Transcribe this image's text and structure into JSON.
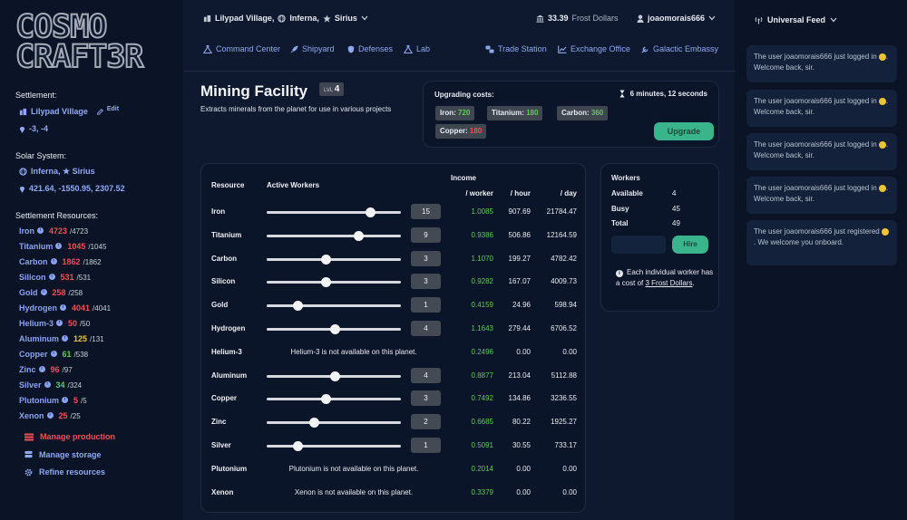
{
  "logo": {
    "line1": "COSMO",
    "line2": "CRAFT3R"
  },
  "sidebar": {
    "settlement_label": "Settlement:",
    "settlement_name": "Lilypad Village",
    "edit_label": "Edit",
    "settlement_coords": "-3, -4",
    "solar_label": "Solar System:",
    "system_name": "Inferna, ★ Sirius",
    "system_coords": "421.64, -1550.95, 2307.52",
    "resources_label": "Settlement Resources:",
    "resources": [
      {
        "name": "Iron",
        "current": "4723",
        "max": "/4723",
        "color": "red"
      },
      {
        "name": "Titanium",
        "current": "1045",
        "max": "/1045",
        "color": "red"
      },
      {
        "name": "Carbon",
        "current": "1862",
        "max": "/1862",
        "color": "red"
      },
      {
        "name": "Silicon",
        "current": "531",
        "max": "/531",
        "color": "red"
      },
      {
        "name": "Gold",
        "current": "258",
        "max": "/258",
        "color": "red"
      },
      {
        "name": "Hydrogen",
        "current": "4041",
        "max": "/4041",
        "color": "red"
      },
      {
        "name": "Helium-3",
        "current": "50",
        "max": "/50",
        "color": "red"
      },
      {
        "name": "Aluminum",
        "current": "125",
        "max": "/131",
        "color": "yellow"
      },
      {
        "name": "Copper",
        "current": "61",
        "max": "/538",
        "color": "green"
      },
      {
        "name": "Zinc",
        "current": "96",
        "max": "/97",
        "color": "red"
      },
      {
        "name": "Silver",
        "current": "34",
        "max": "/324",
        "color": "green"
      },
      {
        "name": "Plutonium",
        "current": "5",
        "max": "/5",
        "color": "red"
      },
      {
        "name": "Xenon",
        "current": "25",
        "max": "/25",
        "color": "red"
      }
    ],
    "actions": [
      {
        "label": "Manage production",
        "color": "#ef4f56",
        "icon": "list-icon"
      },
      {
        "label": "Manage storage",
        "color": "#8ea8f0",
        "icon": "storage-icon"
      },
      {
        "label": "Refine resources",
        "color": "#8ea8f0",
        "icon": "gear-icon"
      }
    ]
  },
  "topbar": {
    "settlement": "Lilypad Village,",
    "planet": "Inferna,",
    "star": "Sirius",
    "balance_amount": "33.39",
    "balance_unit": "Frost Dollars",
    "username": "joaomorais666"
  },
  "nav_left": [
    "Command Center",
    "Shipyard",
    "Defenses",
    "Lab"
  ],
  "nav_right": [
    "Trade Station",
    "Exchange Office",
    "Galactic Embassy"
  ],
  "facility": {
    "title": "Mining Facility",
    "level_label": "LVL",
    "level": "4",
    "description": "Extracts minerals from the planet for use in various projects"
  },
  "upgrade": {
    "label": "Upgrading costs:",
    "time": "6 minutes, 12 seconds",
    "costs": [
      {
        "name": "Iron:",
        "value": "720",
        "color": "green"
      },
      {
        "name": "Titanium:",
        "value": "180",
        "color": "green"
      },
      {
        "name": "Carbon:",
        "value": "360",
        "color": "green"
      },
      {
        "name": "Copper:",
        "value": "180",
        "color": "red"
      }
    ],
    "button": "Upgrade"
  },
  "table": {
    "col_resource": "Resource",
    "col_workers": "Active Workers",
    "col_income": "Income",
    "col_per_worker": "/ worker",
    "col_per_hour": "/ hour",
    "col_per_day": "/ day",
    "rows": [
      {
        "name": "Iron",
        "workers": "15",
        "slider": 0.77,
        "per_worker": "1.0085",
        "hour": "907.69",
        "day": "21784.47"
      },
      {
        "name": "Titanium",
        "workers": "9",
        "slider": 0.68,
        "per_worker": "0.9386",
        "hour": "506.86",
        "day": "12164.59"
      },
      {
        "name": "Carbon",
        "workers": "3",
        "slider": 0.44,
        "per_worker": "1.1070",
        "hour": "199.27",
        "day": "4782.42"
      },
      {
        "name": "Silicon",
        "workers": "3",
        "slider": 0.44,
        "per_worker": "0.9282",
        "hour": "167.07",
        "day": "4009.73"
      },
      {
        "name": "Gold",
        "workers": "1",
        "slider": 0.23,
        "per_worker": "0.4159",
        "hour": "24.96",
        "day": "598.94"
      },
      {
        "name": "Hydrogen",
        "workers": "4",
        "slider": 0.51,
        "per_worker": "1.1643",
        "hour": "279.44",
        "day": "6706.52"
      },
      {
        "name": "Helium-3",
        "na": "Helium-3 is not available on this planet.",
        "per_worker": "0.2496",
        "hour": "0.00",
        "day": "0.00"
      },
      {
        "name": "Aluminum",
        "workers": "4",
        "slider": 0.51,
        "per_worker": "0.8877",
        "hour": "213.04",
        "day": "5112.88"
      },
      {
        "name": "Copper",
        "workers": "3",
        "slider": 0.44,
        "per_worker": "0.7492",
        "hour": "134.86",
        "day": "3236.55"
      },
      {
        "name": "Zinc",
        "workers": "2",
        "slider": 0.35,
        "per_worker": "0.6685",
        "hour": "80.22",
        "day": "1925.27"
      },
      {
        "name": "Silver",
        "workers": "1",
        "slider": 0.23,
        "per_worker": "0.5091",
        "hour": "30.55",
        "day": "733.17"
      },
      {
        "name": "Plutonium",
        "na": "Plutonium is not available on this planet.",
        "per_worker": "0.2014",
        "hour": "0.00",
        "day": "0.00"
      },
      {
        "name": "Xenon",
        "na": "Xenon is not available on this planet.",
        "per_worker": "0.3379",
        "hour": "0.00",
        "day": "0.00"
      }
    ]
  },
  "workers": {
    "title": "Workers",
    "available_label": "Available",
    "available": "4",
    "busy_label": "Busy",
    "busy": "45",
    "total_label": "Total",
    "total": "49",
    "hire_button": "Hire",
    "note_prefix": "Each individual worker has a cost of",
    "note_link": "3 Frost Dollars",
    "note_suffix": "."
  },
  "feed": {
    "title": "Universal Feed",
    "items": [
      {
        "pre": "The user joaomorais666 just logged in",
        "post": ". Welcome back, sir."
      },
      {
        "pre": "The user joaomorais666 just logged in",
        "post": ". Welcome back, sir."
      },
      {
        "pre": "The user joaomorais666 just logged in",
        "post": ". Welcome back, sir."
      },
      {
        "pre": "The user joaomorais666 just logged in",
        "post": ". Welcome back, sir."
      },
      {
        "pre": "The user joaomorais666 just registered",
        "post": ". We welcome you onboard."
      }
    ]
  }
}
